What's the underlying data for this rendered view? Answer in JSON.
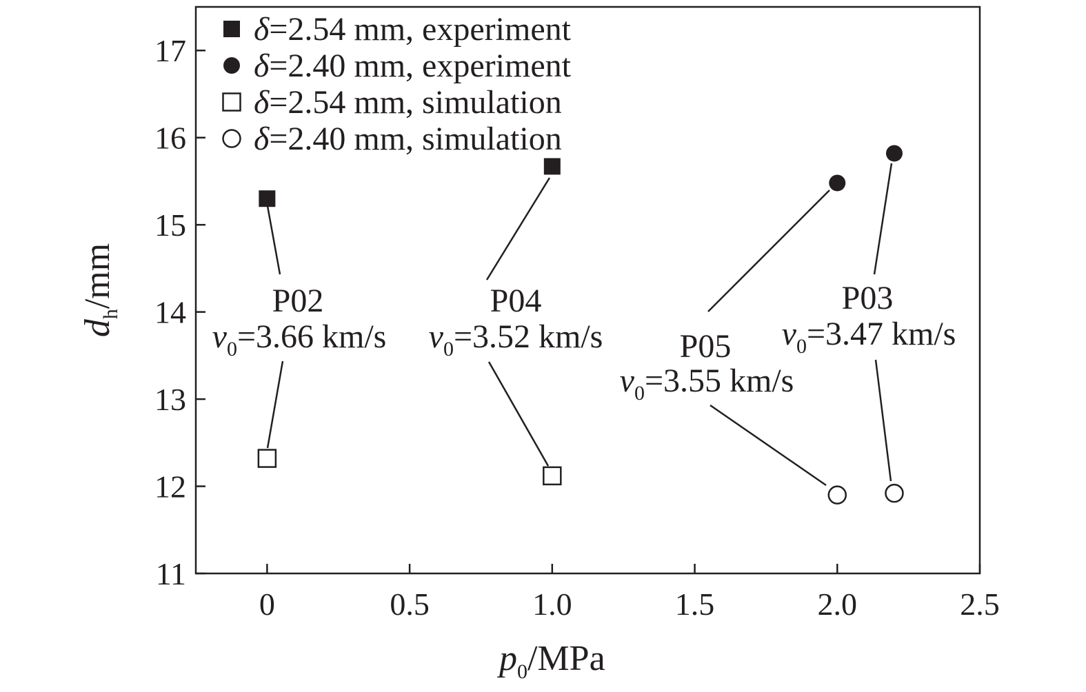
{
  "chart_data": {
    "type": "scatter",
    "x_axis": {
      "label_symbol": "p",
      "label_sub": "0",
      "label_unit": "/MPa",
      "range": [
        -0.25,
        2.5
      ],
      "ticks": [
        {
          "v": 0,
          "label": "0"
        },
        {
          "v": 0.5,
          "label": "0.5"
        },
        {
          "v": 1.0,
          "label": "1.0"
        },
        {
          "v": 1.5,
          "label": "1.5"
        },
        {
          "v": 2.0,
          "label": "2.0"
        },
        {
          "v": 2.5,
          "label": "2.5"
        }
      ]
    },
    "y_axis": {
      "label_symbol": "d",
      "label_sub": "h",
      "label_unit": "/mm",
      "range": [
        11,
        17.5
      ],
      "ticks": [
        {
          "v": 11,
          "label": "11"
        },
        {
          "v": 12,
          "label": "12"
        },
        {
          "v": 13,
          "label": "13"
        },
        {
          "v": 14,
          "label": "14"
        },
        {
          "v": 15,
          "label": "15"
        },
        {
          "v": 16,
          "label": "16"
        },
        {
          "v": 17,
          "label": "17"
        }
      ]
    },
    "legend_position": "top-left",
    "grid": false,
    "series": [
      {
        "name_symbol": "δ",
        "name": "=2.54 mm, experiment",
        "marker": "square",
        "filled": true,
        "points": [
          {
            "x": 0.0,
            "y": 15.3
          },
          {
            "x": 1.0,
            "y": 15.67
          }
        ]
      },
      {
        "name_symbol": "δ",
        "name": "=2.40 mm, experiment",
        "marker": "circle",
        "filled": true,
        "points": [
          {
            "x": 2.0,
            "y": 15.48
          },
          {
            "x": 2.2,
            "y": 15.82
          }
        ]
      },
      {
        "name_symbol": "δ",
        "name": "=2.54 mm, simulation",
        "marker": "square",
        "filled": false,
        "points": [
          {
            "x": 0.0,
            "y": 12.32
          },
          {
            "x": 1.0,
            "y": 12.12
          }
        ]
      },
      {
        "name_symbol": "δ",
        "name": "=2.40 mm, simulation",
        "marker": "circle",
        "filled": false,
        "points": [
          {
            "x": 2.0,
            "y": 11.9
          },
          {
            "x": 2.2,
            "y": 11.92
          }
        ]
      }
    ],
    "annotations": [
      {
        "id": "P02",
        "label": "P02",
        "v_symbol": "v",
        "v_sub": "0",
        "v_text": "=3.66 km/s"
      },
      {
        "id": "P04",
        "label": "P04",
        "v_symbol": "v",
        "v_sub": "0",
        "v_text": "=3.52 km/s"
      },
      {
        "id": "P05",
        "label": "P05",
        "v_symbol": "v",
        "v_sub": "0",
        "v_text": "=3.55 km/s"
      },
      {
        "id": "P03",
        "label": "P03",
        "v_symbol": "v",
        "v_sub": "0",
        "v_text": "=3.47 km/s"
      }
    ]
  }
}
